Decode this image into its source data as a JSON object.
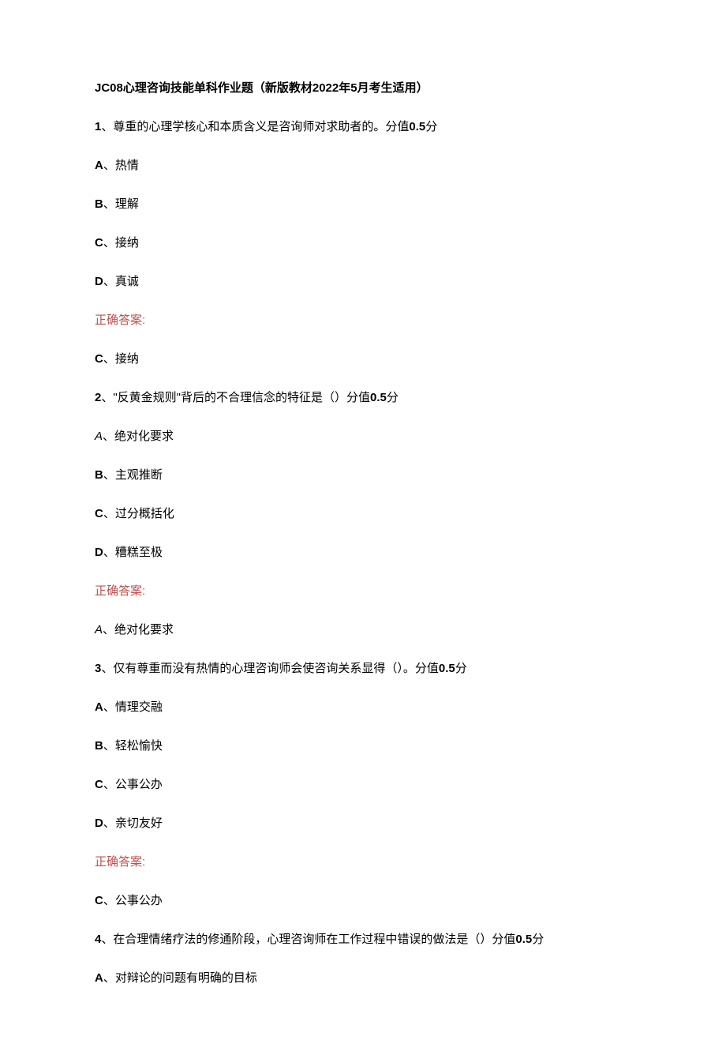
{
  "title": "JC08心理咨询技能单科作业题（新版教材2022年5月考生适用）",
  "questions": [
    {
      "num": "1",
      "text": "、尊重的心理学核心和本质含义是咨询师对求助者的。分值",
      "score": "0.5",
      "scoreSuffix": "分",
      "numBold": true,
      "options": [
        {
          "letter": "A",
          "text": "、热情",
          "bold": true
        },
        {
          "letter": "B",
          "text": "、理解",
          "bold": true
        },
        {
          "letter": "C",
          "text": "、接纳",
          "bold": true
        },
        {
          "letter": "D",
          "text": "、真诚",
          "bold": true
        }
      ],
      "answerLabel": "正确答案:",
      "answer": {
        "letter": "C",
        "text": "、接纳",
        "bold": true
      }
    },
    {
      "num": "2",
      "text": "、\"反黄金规则\"背后的不合理信念的特征是（）分值",
      "score": "0.5",
      "scoreSuffix": "分",
      "numBold": true,
      "options": [
        {
          "letter": "A",
          "text": "、绝对化要求",
          "italic": true
        },
        {
          "letter": "B",
          "text": "、主观推断",
          "bold": true
        },
        {
          "letter": "C",
          "text": "、过分概括化",
          "bold": true
        },
        {
          "letter": "D",
          "text": "、糟糕至极",
          "bold": true
        }
      ],
      "answerLabel": "正确答案:",
      "answer": {
        "letter": "A",
        "text": "、绝对化要求",
        "italic": true
      }
    },
    {
      "num": "3",
      "text": "、仅有尊重而没有热情的心理咨询师会使咨询关系显得（）。分值",
      "score": "0.5",
      "scoreSuffix": "分",
      "numBold": true,
      "options": [
        {
          "letter": "A",
          "text": "、情理交融",
          "bold": true
        },
        {
          "letter": "B",
          "text": "、轻松愉快",
          "bold": true
        },
        {
          "letter": "C",
          "text": "、公事公办",
          "bold": true
        },
        {
          "letter": "D",
          "text": "、亲切友好",
          "bold": true
        }
      ],
      "answerLabel": "正确答案:",
      "answer": {
        "letter": "C",
        "text": "、公事公办",
        "bold": true
      }
    },
    {
      "num": "4",
      "text": "、在合理情绪疗法的修通阶段，心理咨询师在工作过程中错误的做法是（）分值",
      "score": "0.5",
      "scoreSuffix": "分",
      "numBold": true,
      "options": [
        {
          "letter": "A",
          "text": "、对辩论的问题有明确的目标",
          "bold": true
        }
      ],
      "answerLabel": "",
      "answer": null
    }
  ]
}
